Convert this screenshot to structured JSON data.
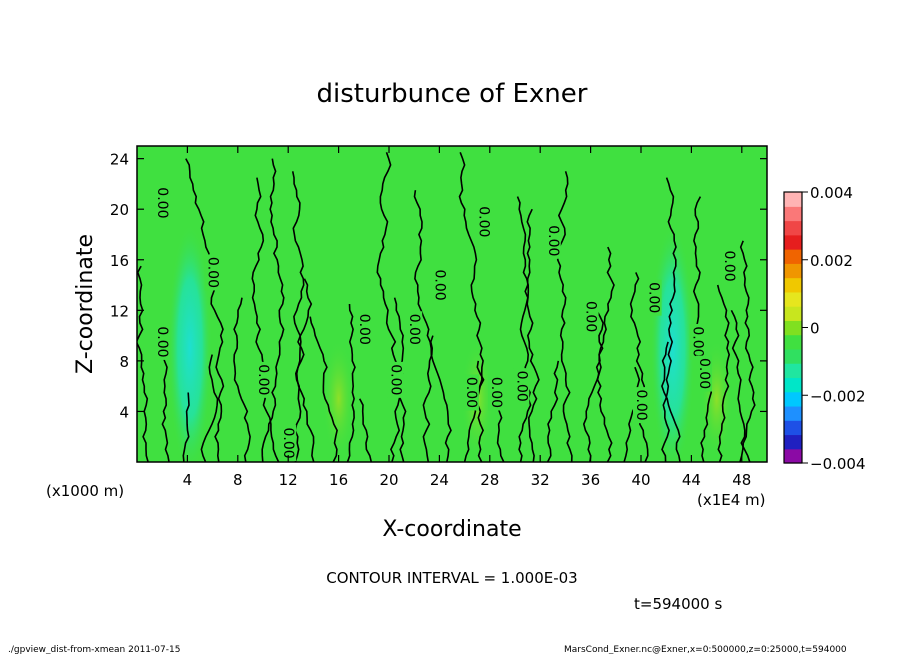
{
  "chart_data": {
    "type": "heatmap",
    "title": "disturbunce of Exner",
    "xlabel": "X-coordinate",
    "ylabel": "Z-coordinate",
    "x_unit": "(x1E4 m)",
    "y_unit": "(x1000 m)",
    "xlim": [
      0,
      50
    ],
    "ylim": [
      0,
      25
    ],
    "x_ticks": [
      "4",
      "8",
      "12",
      "16",
      "20",
      "24",
      "28",
      "32",
      "36",
      "40",
      "44",
      "48"
    ],
    "y_ticks": [
      "4",
      "8",
      "12",
      "16",
      "20",
      "24"
    ],
    "colorbar": {
      "range": [
        -0.004,
        0.004
      ],
      "tick_labels": [
        "0.004",
        "0.002",
        "0",
        "−0.002",
        "−0.004"
      ],
      "colors": [
        "#8b0aa5",
        "#2020c0",
        "#1e50e6",
        "#1e90ff",
        "#00c8ff",
        "#00e6c8",
        "#20e6a0",
        "#30e060",
        "#40e040",
        "#80e020",
        "#c8e61e",
        "#e6e61e",
        "#f0c800",
        "#f09600",
        "#f06400",
        "#e61e1e",
        "#f04646",
        "#fa7878",
        "#ffb4b4"
      ]
    },
    "background_color": "#40e040",
    "contour_label": "0.00",
    "contour_label_positions": [
      [
        2,
        20.5
      ],
      [
        6,
        15
      ],
      [
        2,
        9.5
      ],
      [
        10,
        6.5
      ],
      [
        12,
        1.5
      ],
      [
        18,
        10.5
      ],
      [
        20.5,
        6.5
      ],
      [
        22,
        10.5
      ],
      [
        24,
        14
      ],
      [
        26.5,
        5.5
      ],
      [
        28.5,
        5.5
      ],
      [
        30.5,
        6
      ],
      [
        27.5,
        19
      ],
      [
        33,
        17.5
      ],
      [
        36,
        11.5
      ],
      [
        40,
        4.5
      ],
      [
        41,
        13
      ],
      [
        44.5,
        9.5
      ],
      [
        45,
        7
      ],
      [
        47,
        15.5
      ]
    ],
    "fields": {
      "minima_x": [
        4.2,
        42.5
      ],
      "maxima_x": [
        16,
        27,
        46
      ]
    }
  },
  "footer": {
    "contour_interval": "CONTOUR INTERVAL = 1.000E-03",
    "time": "t=594000 s",
    "left": "./gpview_dist-from-xmean  2011-07-15",
    "right": "MarsCond_Exner.nc@Exner,x=0:500000,z=0:25000,t=594000"
  }
}
